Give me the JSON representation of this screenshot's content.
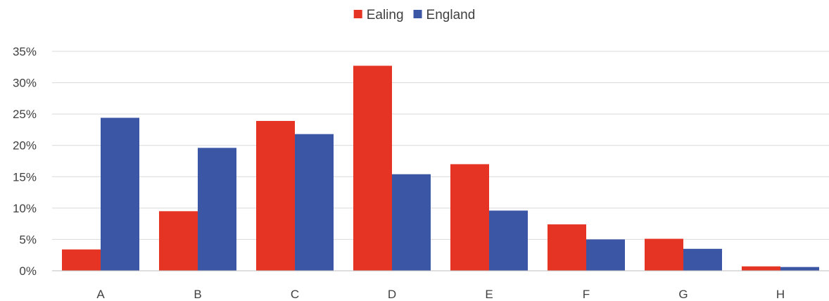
{
  "chart_data": {
    "type": "bar",
    "categories": [
      "A",
      "B",
      "C",
      "D",
      "E",
      "F",
      "G",
      "H"
    ],
    "series": [
      {
        "name": "Ealing",
        "color": "#e53424",
        "values": [
          3.4,
          9.5,
          23.9,
          32.7,
          17.0,
          7.4,
          5.1,
          0.7
        ]
      },
      {
        "name": "England",
        "color": "#3c56a6",
        "values": [
          24.4,
          19.6,
          21.8,
          15.4,
          9.6,
          5.0,
          3.5,
          0.6
        ]
      }
    ],
    "title": "",
    "xlabel": "",
    "ylabel": "",
    "ylim": [
      0,
      35
    ],
    "ytick_step": 5,
    "ytick_labels": [
      "0%",
      "5%",
      "10%",
      "15%",
      "20%",
      "25%",
      "30%",
      "35%"
    ],
    "grid": true,
    "legend_position": "top-center"
  }
}
